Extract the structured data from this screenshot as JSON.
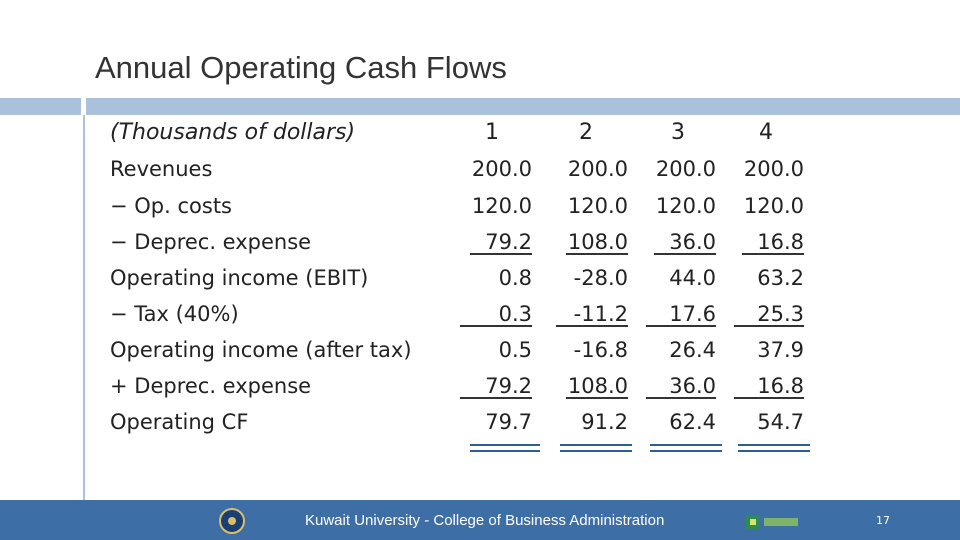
{
  "title": "Annual Operating Cash Flows",
  "table": {
    "units_label": "(Thousands of dollars)",
    "years": [
      "1",
      "2",
      "3",
      "4"
    ],
    "rows": [
      {
        "label": "Revenues",
        "values": [
          "200.0",
          "200.0",
          "200.0",
          "200.0"
        ]
      },
      {
        "label": "− Op. costs",
        "values": [
          "120.0",
          "120.0",
          "120.0",
          "120.0"
        ]
      },
      {
        "label": "− Deprec. expense",
        "values": [
          "79.2",
          "108.0",
          "36.0",
          "16.8"
        ]
      },
      {
        "label": "Operating income (EBIT)",
        "values": [
          "0.8",
          "-28.0",
          "44.0",
          "63.2"
        ]
      },
      {
        "label": "− Tax (40%)",
        "values": [
          "0.3",
          "-11.2",
          "17.6",
          "25.3"
        ]
      },
      {
        "label": "Operating income (after tax)",
        "values": [
          "0.5",
          "-16.8",
          "26.4",
          "37.9"
        ]
      },
      {
        "label": "+ Deprec. expense",
        "values": [
          "79.2",
          "108.0",
          "36.0",
          "16.8"
        ]
      },
      {
        "label": "Operating CF",
        "values": [
          "79.7",
          "91.2",
          "62.4",
          "54.7"
        ]
      }
    ]
  },
  "footer": {
    "text": "Kuwait University - College of Business Administration",
    "page_number": "17",
    "logo_left": "university-seal",
    "logo_right": "college-logo",
    "bar_color": "#3d6fa6"
  },
  "colors": {
    "accent_bar": "#a9c1dc",
    "double_rule": "#2c5f93"
  }
}
